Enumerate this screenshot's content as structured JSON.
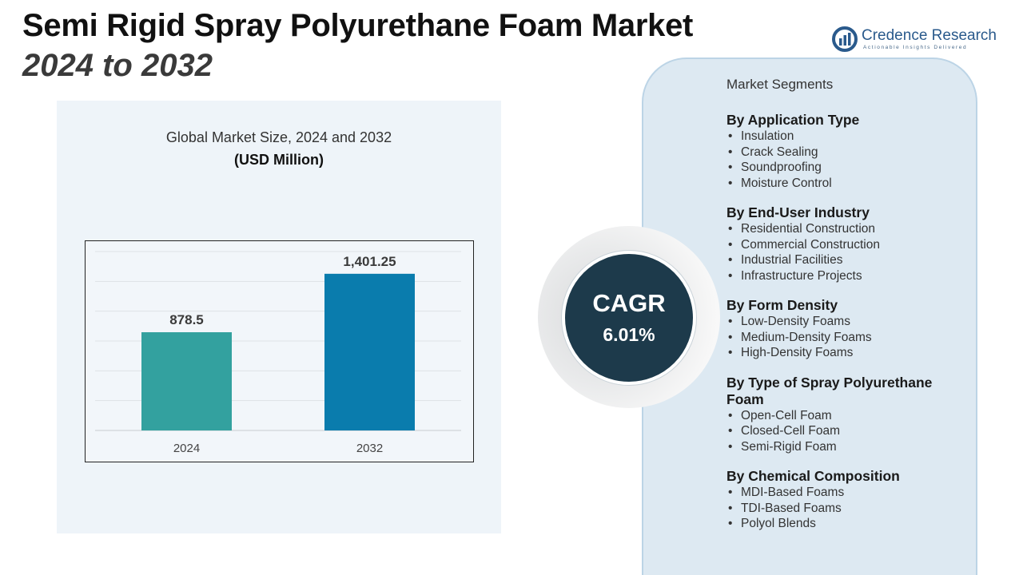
{
  "header": {
    "title_line1": "Semi Rigid Spray Polyurethane Foam Market",
    "title_line2": "2024 to 2032"
  },
  "logo": {
    "name": "Credence Research",
    "tagline": "Actionable Insights Delivered",
    "icon": "credence-logo-icon",
    "color": "#2a5a8c"
  },
  "chart_data": {
    "type": "bar",
    "title": "Global Market Size, 2024 and 2032",
    "subtitle": "(USD Million)",
    "categories": [
      "2024",
      "2032"
    ],
    "values": [
      878.5,
      1401.25
    ],
    "value_labels": [
      "878.5",
      "1,401.25"
    ],
    "colors": [
      "#33a19f",
      "#0a7cad"
    ],
    "ylim": [
      0,
      1600
    ],
    "grid": true,
    "xlabel": "",
    "ylabel": ""
  },
  "cagr": {
    "label": "CAGR",
    "value": "6.01%"
  },
  "segments": {
    "heading": "Market Segments",
    "groups": [
      {
        "title": "By Application Type",
        "items": [
          "Insulation",
          "Crack Sealing",
          "Soundproofing",
          "Moisture Control"
        ]
      },
      {
        "title": "By End-User Industry",
        "items": [
          "Residential Construction",
          "Commercial Construction",
          "Industrial Facilities",
          "Infrastructure Projects"
        ]
      },
      {
        "title": "By Form Density",
        "items": [
          "Low-Density Foams",
          "Medium-Density Foams",
          "High-Density Foams"
        ]
      },
      {
        "title": "By Type of Spray Polyurethane Foam",
        "items": [
          "Open-Cell Foam",
          "Closed-Cell Foam",
          "Semi-Rigid Foam"
        ]
      },
      {
        "title": "By Chemical Composition",
        "items": [
          "MDI-Based Foams",
          "TDI-Based Foams",
          "Polyol Blends"
        ]
      }
    ]
  }
}
